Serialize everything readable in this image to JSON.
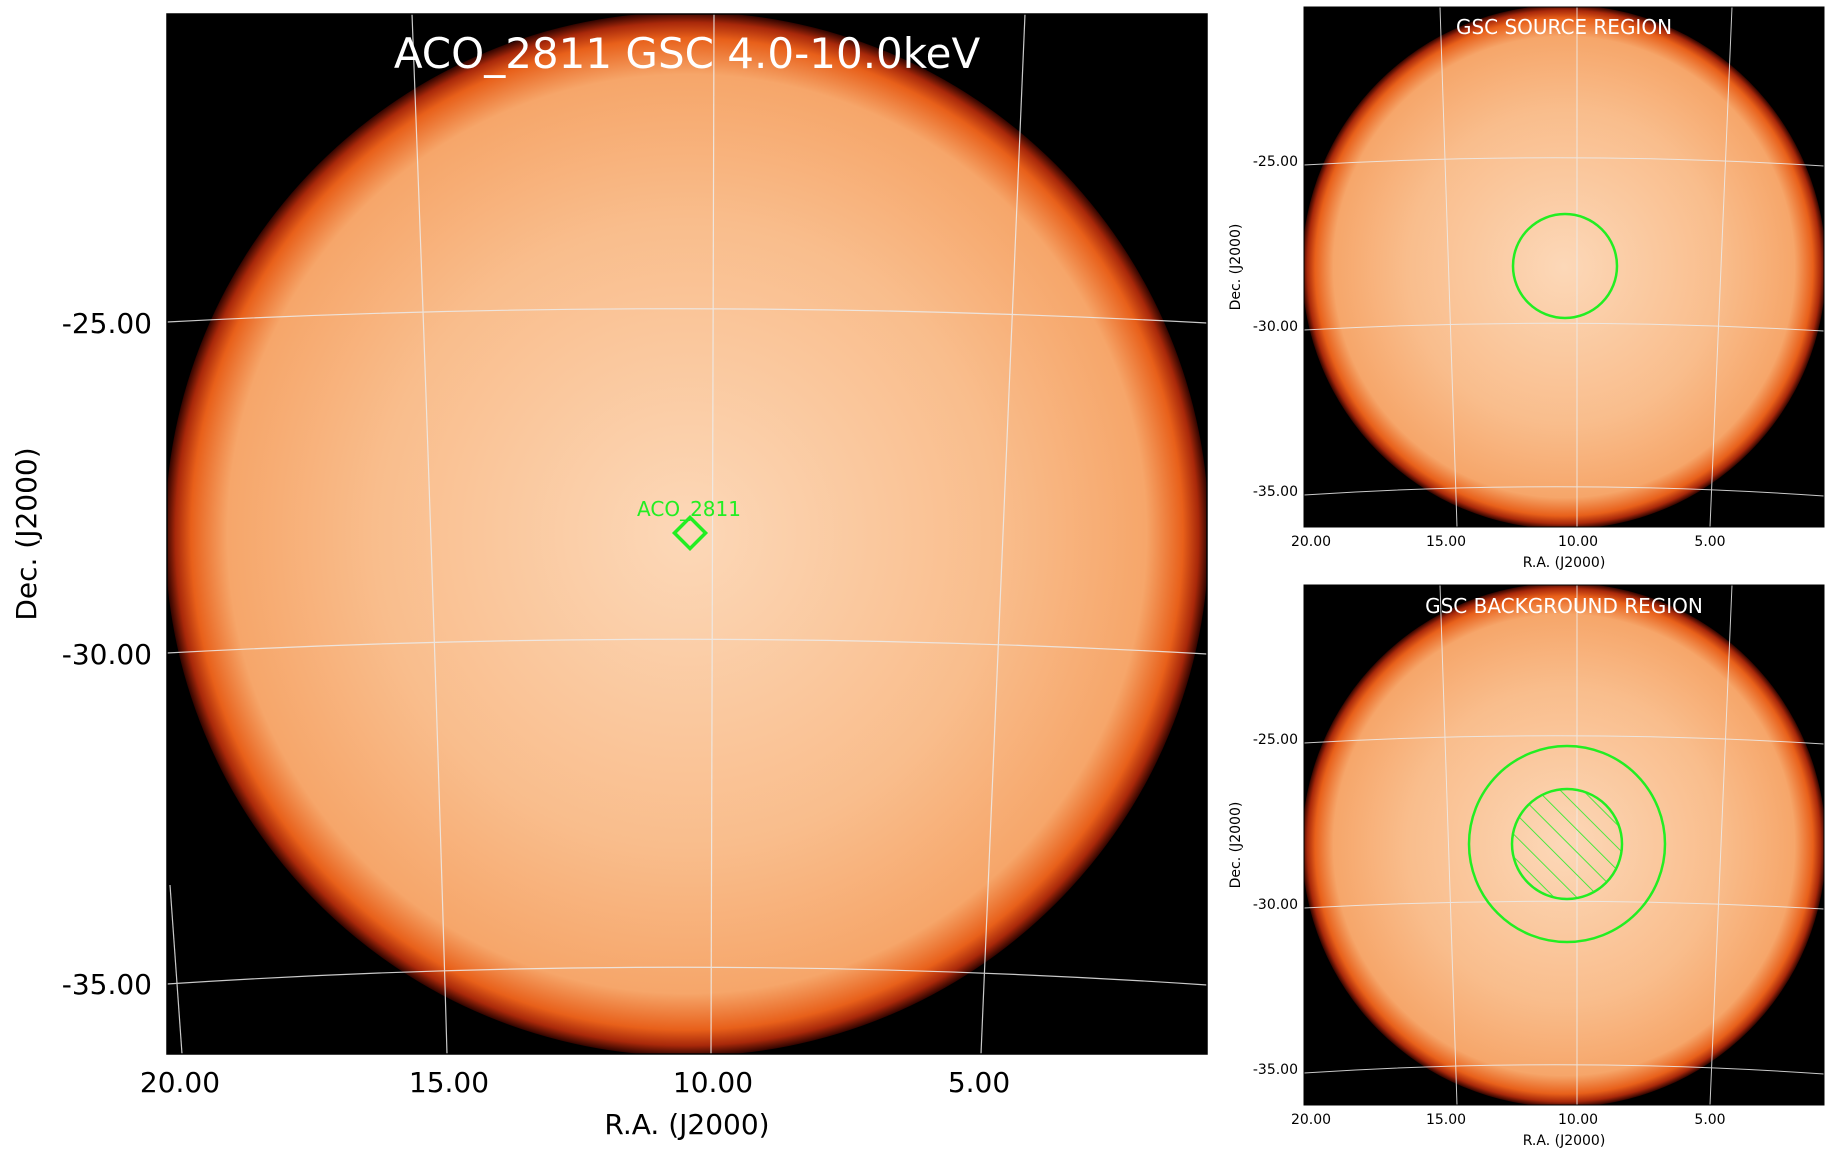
{
  "figure": {
    "main": {
      "title": "ACO_2811 GSC 4.0-10.0keV",
      "xlabel": "R.A. (J2000)",
      "ylabel": "Dec. (J2000)",
      "x_ticks": [
        "20.00",
        "15.00",
        "10.00",
        "5.00"
      ],
      "y_ticks": [
        "-25.00",
        "-30.00",
        "-35.00"
      ],
      "source_label": "ACO_2811"
    },
    "source_panel": {
      "title": "GSC SOURCE REGION",
      "xlabel": "R.A. (J2000)",
      "ylabel": "Dec. (J2000)",
      "x_ticks": [
        "20.00",
        "15.00",
        "10.00",
        "5.00"
      ],
      "y_ticks": [
        "-25.00",
        "-30.00",
        "-35.00"
      ]
    },
    "background_panel": {
      "title": "GSC BACKGROUND REGION",
      "xlabel": "R.A. (J2000)",
      "ylabel": "Dec. (J2000)",
      "x_ticks": [
        "20.00",
        "15.00",
        "10.00",
        "5.00"
      ],
      "y_ticks": [
        "-25.00",
        "-30.00",
        "-35.00"
      ]
    }
  },
  "colors": {
    "disk_center": "#fcd9b8",
    "disk_mid": "#f9b27a",
    "disk_edge": "#e8601a",
    "rim": "#7a1205",
    "background": "#000000",
    "region": "#22ee22",
    "grid": "#e8e8e8"
  }
}
